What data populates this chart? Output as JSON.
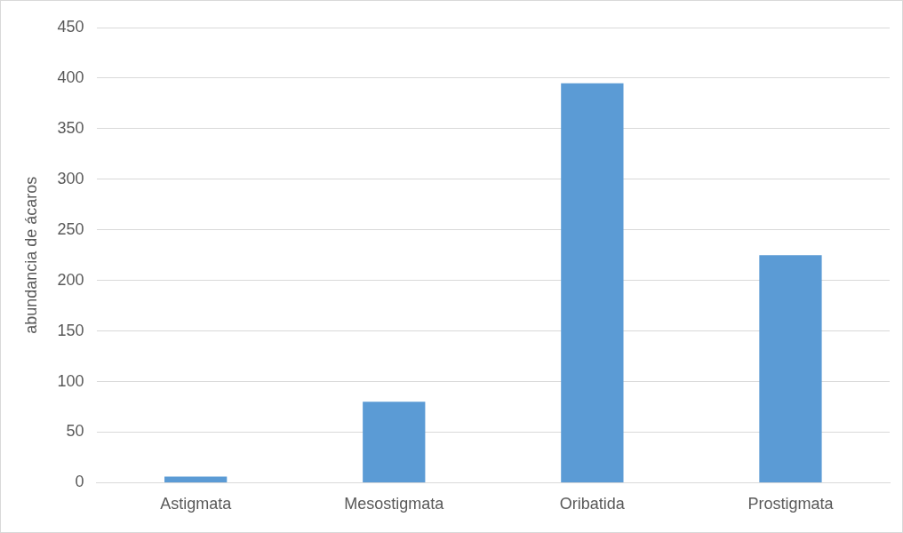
{
  "chart_data": {
    "type": "bar",
    "ylabel": "abundancia de ácaros",
    "categories": [
      "Astigmata",
      "Mesostigmata",
      "Oribatida",
      "Prostigmata"
    ],
    "values": [
      6,
      80,
      395,
      225
    ],
    "color": "#5b9bd5",
    "ylim": [
      0,
      450
    ],
    "yticks": [
      0,
      50,
      100,
      150,
      200,
      250,
      300,
      350,
      400,
      450
    ],
    "grid": "y"
  }
}
